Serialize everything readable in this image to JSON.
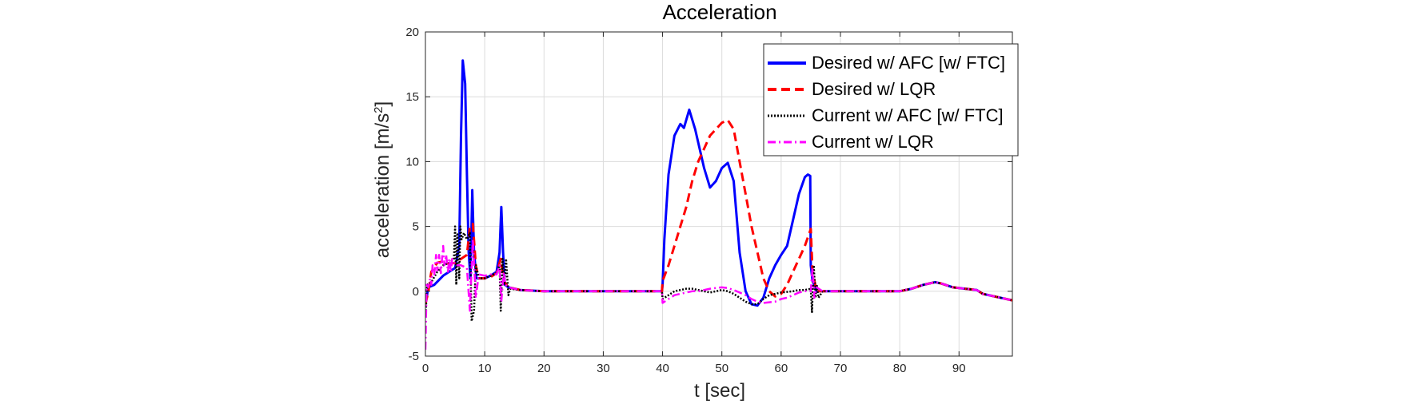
{
  "chart_data": {
    "type": "line",
    "title": "Acceleration",
    "xlabel": "t [sec]",
    "ylabel_main": "acceleration [m/s",
    "ylabel_sup": "2",
    "ylabel_end": "]",
    "xlim": [
      0,
      99
    ],
    "ylim": [
      -5,
      20
    ],
    "xticks": [
      0,
      10,
      20,
      30,
      40,
      50,
      60,
      70,
      80,
      90
    ],
    "yticks": [
      -5,
      0,
      5,
      10,
      15,
      20
    ],
    "grid": true,
    "legend_position": "top-right",
    "series": [
      {
        "name": "Desired w/ AFC [w/ FTC]",
        "color": "#0000ff",
        "style": "solid",
        "points": [
          [
            0,
            -1
          ],
          [
            0.5,
            0.3
          ],
          [
            1.5,
            0.5
          ],
          [
            3,
            1.2
          ],
          [
            4,
            1.5
          ],
          [
            5,
            1.8
          ],
          [
            5.7,
            3.5
          ],
          [
            6,
            12
          ],
          [
            6.3,
            17.8
          ],
          [
            6.7,
            16
          ],
          [
            7,
            9
          ],
          [
            7.3,
            3
          ],
          [
            7.6,
            1
          ],
          [
            7.9,
            7.8
          ],
          [
            8.2,
            3
          ],
          [
            8.6,
            1
          ],
          [
            10,
            1
          ],
          [
            11,
            1.2
          ],
          [
            12,
            1.5
          ],
          [
            12.5,
            3
          ],
          [
            12.8,
            6.5
          ],
          [
            13.1,
            3
          ],
          [
            13.4,
            0.5
          ],
          [
            14,
            0.3
          ],
          [
            16,
            0.1
          ],
          [
            20,
            0
          ],
          [
            30,
            0
          ],
          [
            39.9,
            0
          ],
          [
            40,
            0.5
          ],
          [
            40.3,
            4
          ],
          [
            41,
            9
          ],
          [
            42,
            12
          ],
          [
            43,
            12.9
          ],
          [
            43.6,
            12.6
          ],
          [
            44.5,
            14
          ],
          [
            45.5,
            12.5
          ],
          [
            47,
            9.5
          ],
          [
            48,
            8
          ],
          [
            49,
            8.5
          ],
          [
            50,
            9.5
          ],
          [
            51,
            9.9
          ],
          [
            52,
            8.5
          ],
          [
            53,
            3
          ],
          [
            54,
            0
          ],
          [
            55,
            -1
          ],
          [
            56,
            -1.1
          ],
          [
            57,
            -0.5
          ],
          [
            58,
            1
          ],
          [
            59,
            2
          ],
          [
            60,
            2.8
          ],
          [
            61,
            3.5
          ],
          [
            62,
            5.5
          ],
          [
            63,
            7.5
          ],
          [
            64,
            8.8
          ],
          [
            64.5,
            9
          ],
          [
            64.9,
            8.9
          ],
          [
            65,
            2
          ],
          [
            65.3,
            0.8
          ],
          [
            66,
            0
          ],
          [
            67,
            0
          ],
          [
            70,
            0
          ],
          [
            80,
            0
          ],
          [
            82,
            0.2
          ],
          [
            84,
            0.5
          ],
          [
            86,
            0.7
          ],
          [
            87,
            0.6
          ],
          [
            89,
            0.3
          ],
          [
            91,
            0.2
          ],
          [
            93,
            0.1
          ],
          [
            94,
            -0.2
          ],
          [
            96,
            -0.4
          ],
          [
            99,
            -0.7
          ]
        ]
      },
      {
        "name": "Desired w/ LQR",
        "color": "#ff0000",
        "style": "dashed",
        "points": [
          [
            0,
            -1
          ],
          [
            0.5,
            0
          ],
          [
            1,
            1.5
          ],
          [
            2,
            2.2
          ],
          [
            3,
            2.3
          ],
          [
            4,
            2.1
          ],
          [
            5,
            2.2
          ],
          [
            6,
            2.5
          ],
          [
            7,
            2.8
          ],
          [
            7.5,
            5
          ],
          [
            8,
            5.2
          ],
          [
            8.5,
            2
          ],
          [
            9,
            1
          ],
          [
            10,
            1
          ],
          [
            11,
            1.1
          ],
          [
            12,
            1.4
          ],
          [
            12.7,
            2.5
          ],
          [
            13.2,
            0.8
          ],
          [
            14,
            0.3
          ],
          [
            16,
            0.1
          ],
          [
            20,
            0
          ],
          [
            30,
            0
          ],
          [
            39.9,
            0
          ],
          [
            40,
            0.8
          ],
          [
            41,
            2
          ],
          [
            42,
            3.5
          ],
          [
            43,
            5
          ],
          [
            44,
            6.5
          ],
          [
            45,
            8.5
          ],
          [
            46,
            10
          ],
          [
            47,
            11
          ],
          [
            48,
            12
          ],
          [
            49,
            12.5
          ],
          [
            50,
            13
          ],
          [
            51,
            13.2
          ],
          [
            52,
            12.5
          ],
          [
            53,
            10
          ],
          [
            54,
            7.5
          ],
          [
            55,
            5
          ],
          [
            56,
            3
          ],
          [
            57,
            1
          ],
          [
            58,
            0
          ],
          [
            59,
            -0.4
          ],
          [
            60,
            -0.2
          ],
          [
            61,
            0.5
          ],
          [
            62,
            1.5
          ],
          [
            63,
            2.5
          ],
          [
            64,
            3.5
          ],
          [
            65,
            4.8
          ],
          [
            65.3,
            1.5
          ],
          [
            66,
            0
          ],
          [
            70,
            0
          ],
          [
            80,
            0
          ],
          [
            82,
            0.2
          ],
          [
            84,
            0.5
          ],
          [
            86,
            0.7
          ],
          [
            87,
            0.6
          ],
          [
            89,
            0.3
          ],
          [
            91,
            0.2
          ],
          [
            93,
            0.1
          ],
          [
            94,
            -0.2
          ],
          [
            96,
            -0.4
          ],
          [
            99,
            -0.7
          ]
        ]
      },
      {
        "name": "Current w/ AFC [w/ FTC]",
        "color": "#000000",
        "style": "dotted",
        "points": [
          [
            0,
            -2
          ],
          [
            0.3,
            0.5
          ],
          [
            1,
            0.7
          ],
          [
            2,
            1.5
          ],
          [
            3,
            2
          ],
          [
            4,
            2.2
          ],
          [
            4.8,
            2.5
          ],
          [
            5,
            5
          ],
          [
            5.2,
            0.5
          ],
          [
            5.4,
            4.5
          ],
          [
            5.7,
            1
          ],
          [
            5.9,
            5
          ],
          [
            6.1,
            4
          ],
          [
            6.5,
            4.5
          ],
          [
            7,
            4
          ],
          [
            7.5,
            4.5
          ],
          [
            7.8,
            -2.3
          ],
          [
            8.2,
            -1.5
          ],
          [
            8.5,
            2
          ],
          [
            9,
            1
          ],
          [
            10,
            1
          ],
          [
            11,
            1.2
          ],
          [
            12,
            1.4
          ],
          [
            12.5,
            2
          ],
          [
            12.7,
            -1.5
          ],
          [
            13,
            2.5
          ],
          [
            13.3,
            0.5
          ],
          [
            13.6,
            2.5
          ],
          [
            14,
            -0.3
          ],
          [
            14.3,
            0.2
          ],
          [
            16,
            0.1
          ],
          [
            20,
            0
          ],
          [
            30,
            0
          ],
          [
            39.9,
            0
          ],
          [
            40,
            -0.6
          ],
          [
            41,
            -0.3
          ],
          [
            42,
            0
          ],
          [
            43,
            0.1
          ],
          [
            44,
            0.2
          ],
          [
            45,
            0.2
          ],
          [
            46,
            0.1
          ],
          [
            47,
            0
          ],
          [
            48,
            -0.1
          ],
          [
            49,
            0
          ],
          [
            50,
            0.1
          ],
          [
            51,
            0
          ],
          [
            52,
            -0.2
          ],
          [
            53,
            -0.5
          ],
          [
            54,
            -0.8
          ],
          [
            55,
            -1
          ],
          [
            56,
            -1
          ],
          [
            57,
            -0.6
          ],
          [
            58,
            -0.3
          ],
          [
            59,
            -0.2
          ],
          [
            60,
            -0.1
          ],
          [
            62,
            0
          ],
          [
            63,
            0.1
          ],
          [
            64,
            0.1
          ],
          [
            65,
            0.2
          ],
          [
            65.2,
            -1.6
          ],
          [
            65.5,
            2
          ],
          [
            65.8,
            -0.5
          ],
          [
            66,
            0.5
          ],
          [
            66.3,
            -0.5
          ],
          [
            67,
            0
          ],
          [
            70,
            0
          ],
          [
            80,
            0
          ],
          [
            82,
            0.2
          ],
          [
            84,
            0.5
          ],
          [
            86,
            0.7
          ],
          [
            87,
            0.6
          ],
          [
            89,
            0.3
          ],
          [
            91,
            0.2
          ],
          [
            93,
            0.1
          ],
          [
            94,
            -0.2
          ],
          [
            96,
            -0.4
          ],
          [
            99,
            -0.7
          ]
        ]
      },
      {
        "name": "Current w/ LQR",
        "color": "#ff00ff",
        "style": "dashdot",
        "points": [
          [
            0,
            -4.5
          ],
          [
            0.2,
            0.5
          ],
          [
            0.5,
            0.3
          ],
          [
            0.8,
            1
          ],
          [
            1,
            0.5
          ],
          [
            1.2,
            2
          ],
          [
            1.5,
            1.3
          ],
          [
            1.8,
            2.8
          ],
          [
            2,
            1.6
          ],
          [
            2.3,
            2.8
          ],
          [
            2.6,
            1.4
          ],
          [
            3,
            3.5
          ],
          [
            3.2,
            2
          ],
          [
            3.5,
            2.8
          ],
          [
            3.8,
            1.5
          ],
          [
            4,
            2.5
          ],
          [
            4.3,
            1.5
          ],
          [
            4.5,
            2.5
          ],
          [
            5,
            2
          ],
          [
            6,
            2
          ],
          [
            7,
            1.8
          ],
          [
            7.5,
            -1.5
          ],
          [
            8,
            4
          ],
          [
            8.5,
            -0.5
          ],
          [
            9,
            1.3
          ],
          [
            10,
            1.2
          ],
          [
            11,
            1.3
          ],
          [
            12,
            1.3
          ],
          [
            12.5,
            2
          ],
          [
            12.8,
            -0.8
          ],
          [
            13.2,
            1.5
          ],
          [
            13.5,
            0.5
          ],
          [
            14,
            0.3
          ],
          [
            16,
            0.1
          ],
          [
            20,
            0
          ],
          [
            30,
            0
          ],
          [
            39.9,
            0
          ],
          [
            40,
            -0.9
          ],
          [
            41,
            -0.6
          ],
          [
            42,
            -0.3
          ],
          [
            43,
            -0.2
          ],
          [
            44,
            -0.1
          ],
          [
            45,
            0
          ],
          [
            46,
            0
          ],
          [
            47,
            0.1
          ],
          [
            48,
            0.2
          ],
          [
            49,
            0.25
          ],
          [
            50,
            0.3
          ],
          [
            51,
            0.25
          ],
          [
            52,
            0.1
          ],
          [
            53,
            -0.1
          ],
          [
            54,
            -0.3
          ],
          [
            55,
            -0.6
          ],
          [
            56,
            -0.8
          ],
          [
            57,
            -0.9
          ],
          [
            58,
            -0.85
          ],
          [
            59,
            -0.8
          ],
          [
            60,
            -0.6
          ],
          [
            61,
            -0.5
          ],
          [
            62,
            -0.3
          ],
          [
            63,
            -0.1
          ],
          [
            64,
            0
          ],
          [
            65,
            0
          ],
          [
            65.3,
            1.8
          ],
          [
            65.6,
            -0.5
          ],
          [
            66,
            0.3
          ],
          [
            67,
            0
          ],
          [
            70,
            0
          ],
          [
            80,
            0
          ],
          [
            82,
            0.2
          ],
          [
            84,
            0.5
          ],
          [
            86,
            0.7
          ],
          [
            87,
            0.6
          ],
          [
            89,
            0.3
          ],
          [
            91,
            0.2
          ],
          [
            93,
            0.1
          ],
          [
            94,
            -0.2
          ],
          [
            96,
            -0.4
          ],
          [
            99,
            -0.7
          ]
        ]
      }
    ]
  }
}
